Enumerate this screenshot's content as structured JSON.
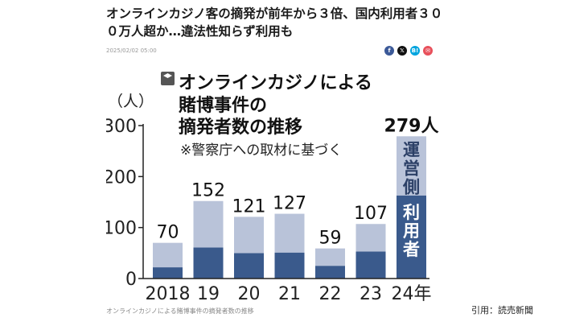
{
  "article": {
    "headline": "オンラインカジノ客の摘発が前年から３倍、国内利用者３００万人超か…違法性知らず利用も",
    "date": "2025/02/02 05:00",
    "caption": "オンラインカジノによる賭博事件の摘発者数の推移",
    "credit": "引用：読売新聞"
  },
  "share_buttons": [
    {
      "name": "facebook-icon",
      "glyph": "f",
      "color": "#3b5998"
    },
    {
      "name": "x-icon",
      "glyph": "𝕏",
      "color": "#111111"
    },
    {
      "name": "hatena-bookmark-icon",
      "glyph": "B!",
      "color": "#00a4de"
    },
    {
      "name": "mail-icon",
      "glyph": "✉",
      "color": "#e8505b"
    }
  ],
  "chart_data": {
    "type": "bar",
    "stacked": true,
    "title_lines": [
      "オンラインカジノによる",
      "賭博事件の",
      "摘発者数の推移"
    ],
    "source_note": "※警察庁への取材に基づく",
    "ylabel": "（人）",
    "ylim": [
      0,
      300
    ],
    "yticks": [
      0,
      100,
      200,
      300
    ],
    "categories": [
      "2018",
      "19",
      "20",
      "21",
      "22",
      "23",
      "24年"
    ],
    "totals": [
      70,
      152,
      121,
      127,
      59,
      107,
      279
    ],
    "total_labels": [
      "70",
      "152",
      "121",
      "127",
      "59",
      "107",
      "279人"
    ],
    "series": [
      {
        "name": "利用者",
        "values": [
          22,
          61,
          50,
          51,
          25,
          53,
          163
        ],
        "color": "#3a5a8c"
      },
      {
        "name": "運営側",
        "values": [
          48,
          91,
          71,
          76,
          34,
          54,
          116
        ],
        "color": "#b9c3d9"
      }
    ],
    "grid": false
  }
}
